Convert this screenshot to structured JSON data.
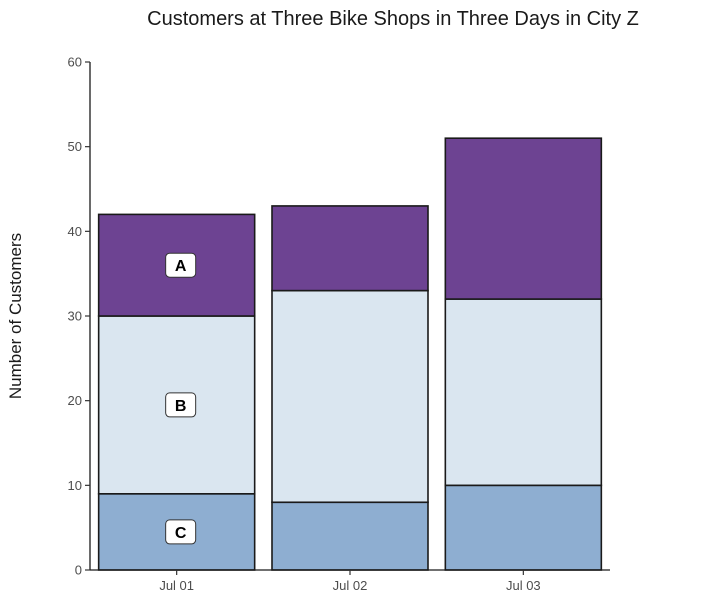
{
  "chart_data": {
    "type": "bar",
    "stacked": true,
    "title": "Customers at Three Bike Shops in Three Days in City Z",
    "xlabel": "",
    "ylabel": "Number of Customers",
    "categories": [
      "Jul 01",
      "Jul 02",
      "Jul 03"
    ],
    "ylim": [
      0,
      60
    ],
    "yticks": [
      0,
      10,
      20,
      30,
      40,
      50,
      60
    ],
    "grid": false,
    "series": [
      {
        "label": "C",
        "values": [
          9,
          8,
          10
        ],
        "color": "#8eaed1"
      },
      {
        "label": "B",
        "values": [
          21,
          25,
          22
        ],
        "color": "#dae6f0"
      },
      {
        "label": "A",
        "values": [
          12,
          10,
          19
        ],
        "color": "#6d4392"
      }
    ],
    "segment_labels": {
      "category_index": 0,
      "series": [
        "C",
        "B",
        "A"
      ]
    }
  }
}
